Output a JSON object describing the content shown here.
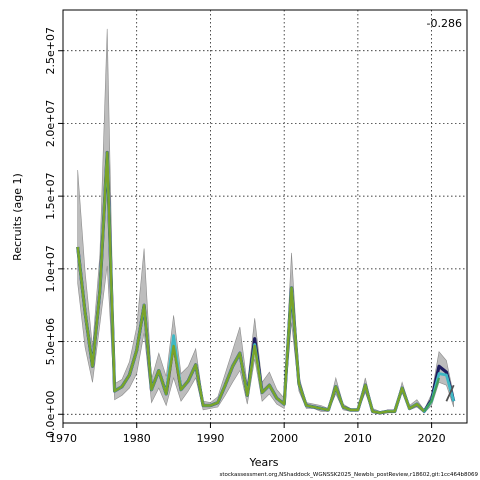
{
  "chart_data": {
    "type": "line",
    "title": "",
    "xlabel": "Years",
    "ylabel": "Recruits (age 1)",
    "annotation": "-0.286",
    "footer": "stockassessment.org,NShaddock_WGNSSK2025_Newbls_postReview,r18602,git:1cc464b8069",
    "xlim": [
      1970,
      2024.8
    ],
    "ylim": [
      -600000.0,
      27800000.0
    ],
    "x_ticks": [
      1970,
      1980,
      1990,
      2000,
      2010,
      2020
    ],
    "x_tick_labels": [
      "1970",
      "1980",
      "1990",
      "2000",
      "2010",
      "2020"
    ],
    "y_ticks": [
      0,
      5000000,
      10000000,
      15000000,
      20000000,
      25000000
    ],
    "y_tick_labels": [
      "0.0e+00",
      "5.0e+06",
      "1.0e+07",
      "1.5e+07",
      "2.0e+07",
      "2.5e+07"
    ],
    "grid": true,
    "years": [
      1972,
      1973,
      1974,
      1975,
      1976,
      1977,
      1978,
      1979,
      1980,
      1981,
      1982,
      1983,
      1984,
      1985,
      1986,
      1987,
      1988,
      1989,
      1990,
      1991,
      1992,
      1993,
      1994,
      1995,
      1996,
      1997,
      1998,
      1999,
      2000,
      2001,
      2002,
      2003,
      2004,
      2005,
      2006,
      2007,
      2008,
      2009,
      2010,
      2011,
      2012,
      2013,
      2014,
      2015,
      2016,
      2017,
      2018,
      2019,
      2020,
      2021,
      2022,
      2023
    ],
    "band_lower": [
      9000000,
      4600000,
      2200000,
      6200000,
      10200000,
      1000000,
      1300000,
      1800000,
      2800000,
      5600000,
      800000,
      1800000,
      600000,
      2500000,
      900000,
      1600000,
      2500000,
      300000,
      400000,
      500000,
      1300000,
      2200000,
      3000000,
      700000,
      3800000,
      900000,
      1400000,
      700000,
      400000,
      6300000,
      1600000,
      400000,
      400000,
      200000,
      200000,
      1400000,
      300000,
      200000,
      200000,
      1500000,
      100000,
      0,
      100000,
      100000,
      1500000,
      300000,
      500000,
      100000,
      600000,
      2200000,
      2000000,
      500000
    ],
    "band_upper": [
      16800000,
      9800000,
      4600000,
      11000000,
      26500000,
      2100000,
      2400000,
      3600000,
      6000000,
      11400000,
      2400000,
      4200000,
      2600000,
      6800000,
      2800000,
      3300000,
      4500000,
      900000,
      800000,
      1200000,
      2800000,
      4400000,
      6000000,
      2000000,
      6600000,
      2200000,
      2900000,
      1700000,
      1100000,
      11100000,
      2600000,
      800000,
      700000,
      600000,
      400000,
      2500000,
      700000,
      400000,
      300000,
      2500000,
      400000,
      200000,
      300000,
      300000,
      2200000,
      600000,
      1000000,
      300000,
      1400000,
      4300000,
      3700000,
      1300000
    ],
    "series": [
      {
        "name": "",
        "color": "#1d1b5e",
        "values": [
          11500000,
          7000000,
          3300000,
          8500000,
          18000000,
          1600000,
          1900000,
          2700000,
          4400000,
          7500000,
          1700000,
          3000000,
          1400000,
          4900000,
          1700000,
          2300000,
          3400000,
          600000,
          600000,
          800000,
          2000000,
          3300000,
          4200000,
          1300000,
          5200000,
          1500000,
          2000000,
          1100000,
          700000,
          8700000,
          2100000,
          600000,
          500000,
          400000,
          300000,
          1900000,
          500000,
          300000,
          300000,
          2000000,
          200000,
          100000,
          200000,
          200000,
          1800000,
          400000,
          700000,
          200000,
          1000000,
          3300000,
          2900000,
          900000
        ],
        "x_start": 1972
      },
      {
        "name": "",
        "color": "#3fb8c4",
        "values": [
          11500000,
          7000000,
          3300000,
          8500000,
          18000000,
          1600000,
          1900000,
          2700000,
          4400000,
          7500000,
          1700000,
          3000000,
          1400000,
          5400000,
          1700000,
          2300000,
          3400000,
          600000,
          600000,
          800000,
          2000000,
          3300000,
          4200000,
          1300000,
          4800000,
          1500000,
          2000000,
          1100000,
          700000,
          8700000,
          2100000,
          600000,
          500000,
          400000,
          300000,
          1900000,
          500000,
          300000,
          300000,
          2000000,
          200000,
          100000,
          200000,
          200000,
          1800000,
          400000,
          700000,
          200000,
          900000,
          2800000,
          2700000,
          900000
        ],
        "x_start": 1972
      },
      {
        "name": "",
        "color": "#7aa329",
        "values": [
          11500000,
          7000000,
          3300000,
          8500000,
          18000000,
          1600000,
          1900000,
          2700000,
          4400000,
          7500000,
          1700000,
          3000000,
          1400000,
          4700000,
          1700000,
          2300000,
          3400000,
          600000,
          600000,
          800000,
          2000000,
          3300000,
          4200000,
          1300000,
          4700000,
          1500000,
          2000000,
          1100000,
          700000,
          8700000,
          2100000,
          600000,
          500000,
          400000,
          300000,
          1900000,
          500000,
          300000,
          300000,
          2000000,
          200000,
          100000,
          200000,
          200000,
          1800000,
          400000,
          700000,
          200000
        ],
        "x_start": 1972
      },
      {
        "name": "",
        "color": "#3fa05a",
        "values": [
          200000,
          900000,
          2500000
        ],
        "x_start": 2019
      },
      {
        "name": "",
        "color": "#505050",
        "values": [
          900000,
          2000000
        ],
        "x_start": 2022
      }
    ]
  }
}
